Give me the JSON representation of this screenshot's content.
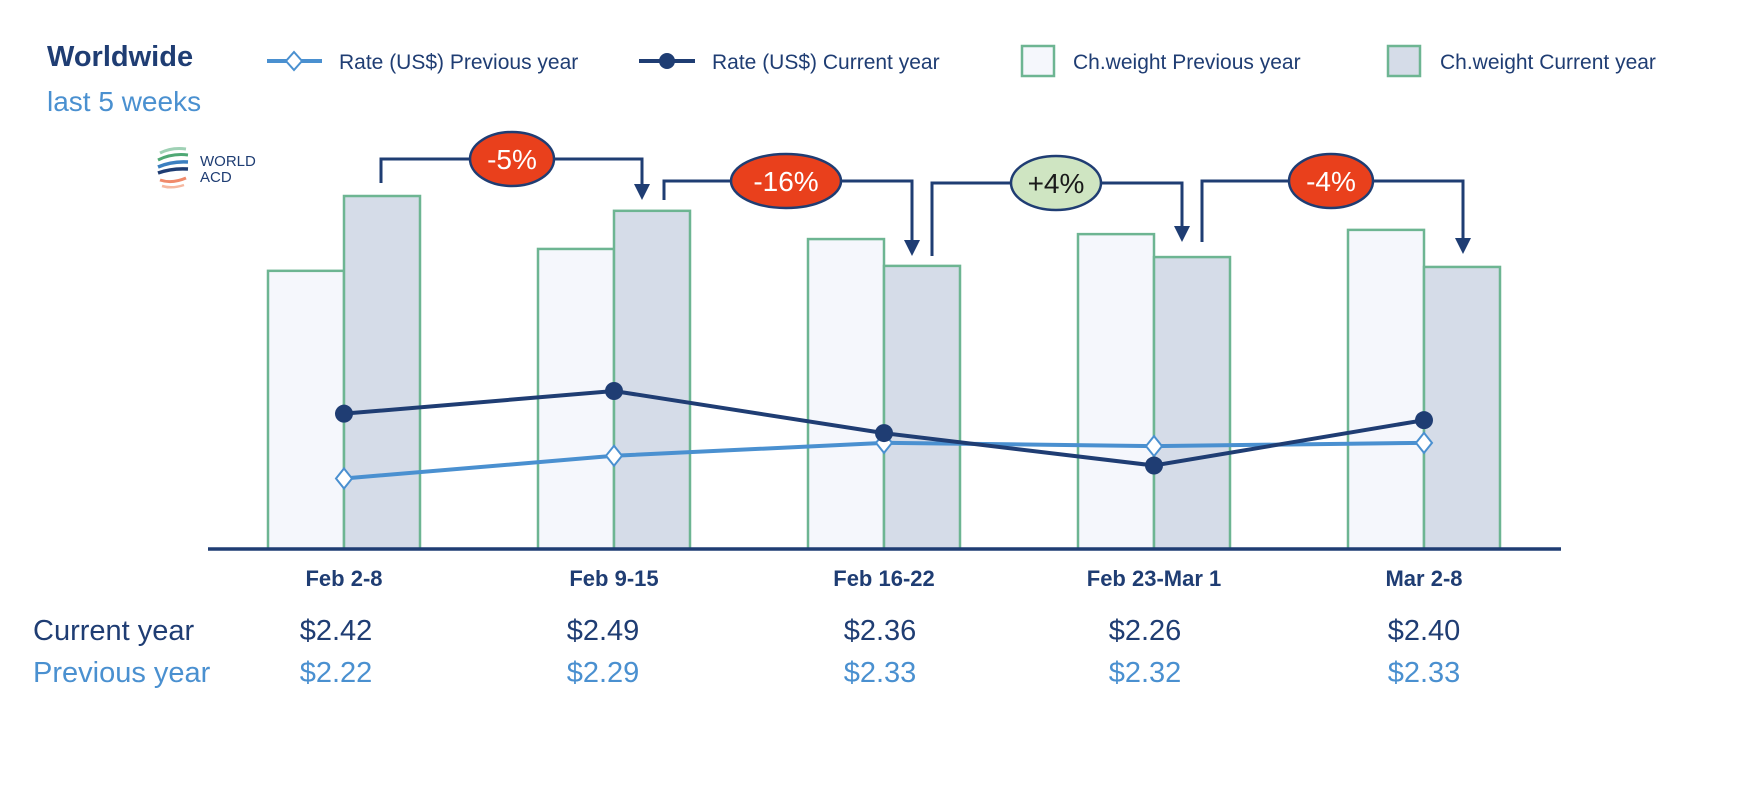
{
  "header": {
    "title": "Worldwide",
    "subtitle": "last 5 weeks"
  },
  "logo": {
    "text_line1": "WORLD",
    "text_line2": "ACD"
  },
  "colors": {
    "navy": "#1f3d73",
    "light_blue": "#4a90d0",
    "bar_border": "#6db592",
    "bar_prev_fill": "#f5f7fc",
    "bar_curr_fill": "#d5dce8",
    "badge_negative": "#e9401c",
    "badge_positive": "#cfe5c2"
  },
  "chart_data": {
    "type": "bar+line",
    "categories": [
      "Feb 2-8",
      "Feb 9-15",
      "Feb 16-22",
      "Feb 23-Mar 1",
      "Mar 2-8"
    ],
    "legend": [
      {
        "name": "Rate (US$) Previous year",
        "marker": "open-diamond-line"
      },
      {
        "name": "Rate (US$) Current year",
        "marker": "filled-circle-line"
      },
      {
        "name": "Ch.weight Previous year",
        "marker": "light-box"
      },
      {
        "name": "Ch.weight Current year",
        "marker": "shaded-box"
      }
    ],
    "legend_position": "top",
    "series": [
      {
        "name": "Rate (US$) Previous year",
        "type": "line",
        "values": [
          2.22,
          2.29,
          2.33,
          2.32,
          2.33
        ]
      },
      {
        "name": "Rate (US$) Current year",
        "type": "line",
        "values": [
          2.42,
          2.49,
          2.36,
          2.26,
          2.4
        ]
      },
      {
        "name": "Ch.weight Previous year",
        "type": "bar",
        "values": [
          78.8,
          85.0,
          87.8,
          89.2,
          90.4
        ]
      },
      {
        "name": "Ch.weight Current year",
        "type": "bar",
        "values": [
          100,
          95.8,
          80.2,
          82.7,
          79.9
        ]
      }
    ],
    "week_on_week_changes": [
      {
        "label": "-5%",
        "from": "Feb 2-8",
        "to": "Feb 9-15",
        "sign": "negative"
      },
      {
        "label": "-16%",
        "from": "Feb 9-15",
        "to": "Feb 16-22",
        "sign": "negative"
      },
      {
        "label": "+4%",
        "from": "Feb 16-22",
        "to": "Feb 23-Mar 1",
        "sign": "positive"
      },
      {
        "label": "-4%",
        "from": "Feb 23-Mar 1",
        "to": "Mar 2-8",
        "sign": "negative"
      }
    ],
    "grid": false
  },
  "table": {
    "current_label": "Current year",
    "previous_label": "Previous year",
    "current": [
      "$2.42",
      "$2.49",
      "$2.36",
      "$2.26",
      "$2.40"
    ],
    "previous": [
      "$2.22",
      "$2.29",
      "$2.33",
      "$2.32",
      "$2.33"
    ]
  }
}
